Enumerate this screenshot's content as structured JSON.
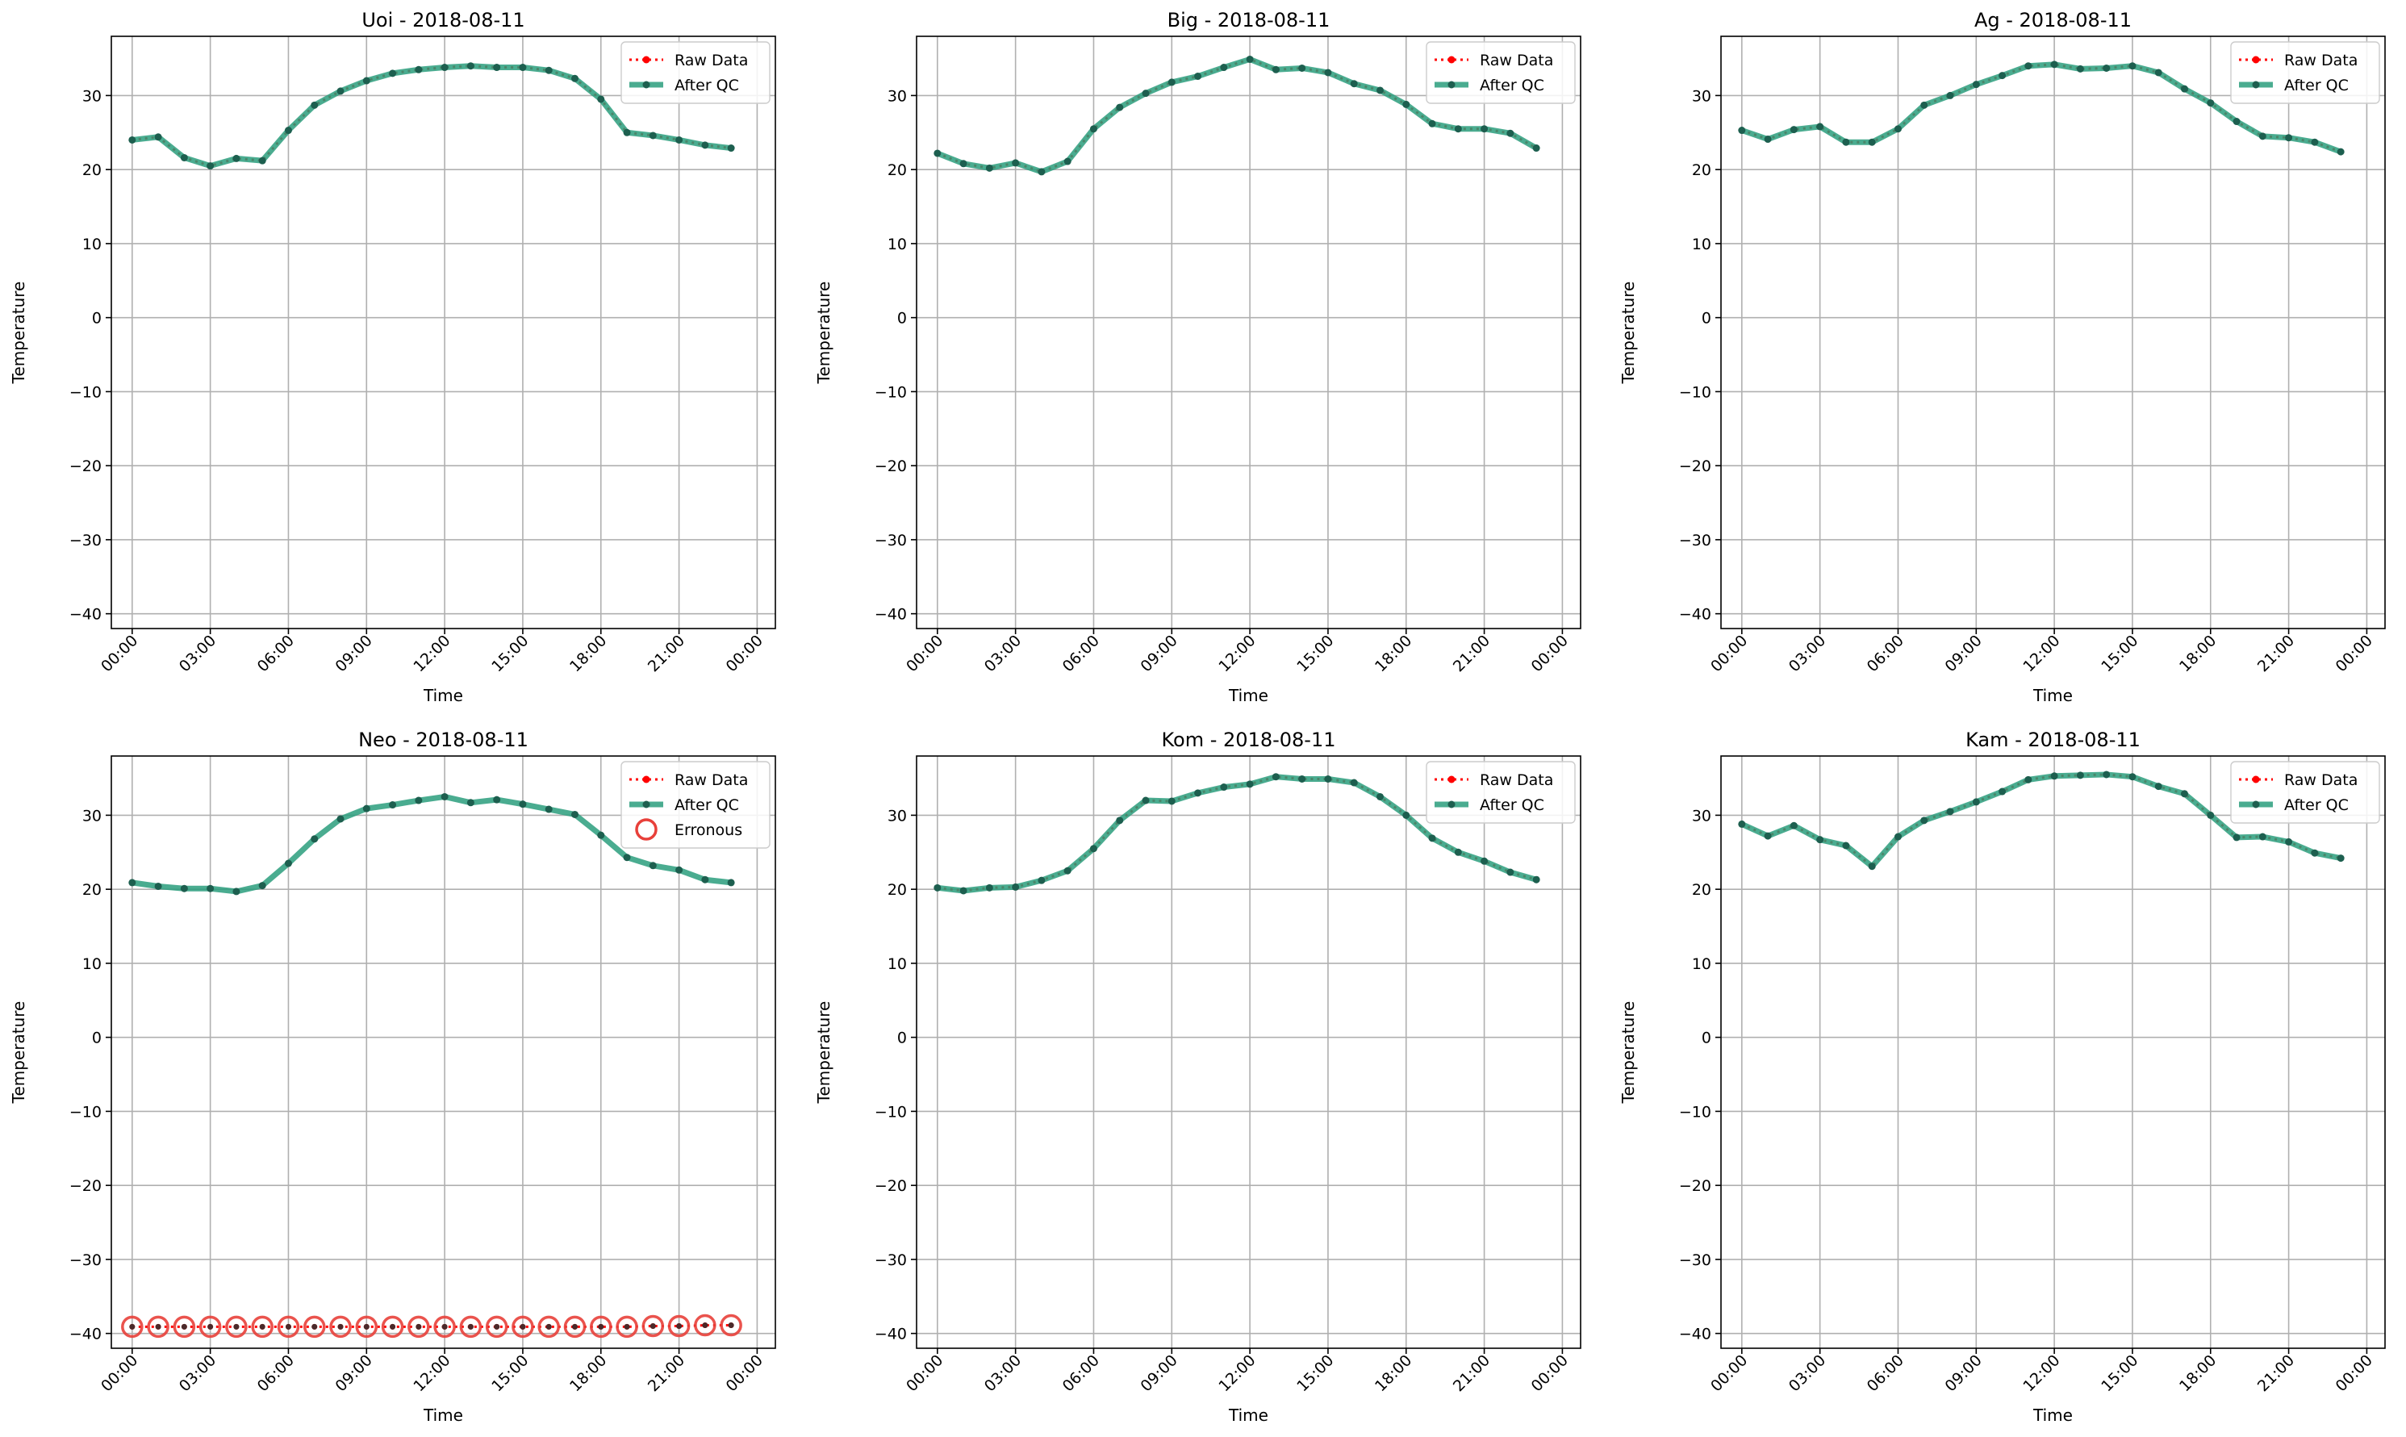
{
  "chart_data": [
    {
      "type": "line",
      "title": "Uoi - 2018-08-11",
      "xlabel": "Time",
      "ylabel": "Temperature",
      "ylim": [
        -42,
        38
      ],
      "yticks": [
        -40,
        -30,
        -20,
        -10,
        0,
        10,
        20,
        30
      ],
      "xticks": [
        "00:00",
        "03:00",
        "06:00",
        "09:00",
        "12:00",
        "15:00",
        "18:00",
        "21:00",
        "00:00"
      ],
      "grid": true,
      "legend_position": "top-right",
      "legend": [
        "Raw Data",
        "After QC"
      ],
      "x_hours": [
        0,
        1,
        2,
        3,
        4,
        5,
        6,
        7,
        8,
        9,
        10,
        11,
        12,
        13,
        14,
        15,
        16,
        17,
        18,
        19,
        20,
        21,
        22,
        23
      ],
      "series": [
        {
          "name": "Raw Data",
          "values": [
            24.0,
            24.4,
            21.6,
            20.5,
            21.5,
            21.2,
            25.3,
            28.7,
            30.6,
            32.0,
            33.0,
            33.5,
            33.8,
            34.0,
            33.8,
            33.8,
            33.4,
            32.3,
            29.5,
            25.0,
            24.6,
            24.0,
            23.3,
            22.9
          ]
        },
        {
          "name": "After QC",
          "values": [
            24.0,
            24.4,
            21.6,
            20.5,
            21.5,
            21.2,
            25.3,
            28.7,
            30.6,
            32.0,
            33.0,
            33.5,
            33.8,
            34.0,
            33.8,
            33.8,
            33.4,
            32.3,
            29.5,
            25.0,
            24.6,
            24.0,
            23.3,
            22.9
          ]
        }
      ]
    },
    {
      "type": "line",
      "title": "Big - 2018-08-11",
      "xlabel": "Time",
      "ylabel": "Temperature",
      "ylim": [
        -42,
        38
      ],
      "yticks": [
        -40,
        -30,
        -20,
        -10,
        0,
        10,
        20,
        30
      ],
      "xticks": [
        "00:00",
        "03:00",
        "06:00",
        "09:00",
        "12:00",
        "15:00",
        "18:00",
        "21:00",
        "00:00"
      ],
      "grid": true,
      "legend_position": "top-right",
      "legend": [
        "Raw Data",
        "After QC"
      ],
      "x_hours": [
        0,
        1,
        2,
        3,
        4,
        5,
        6,
        7,
        8,
        9,
        10,
        11,
        12,
        13,
        14,
        15,
        16,
        17,
        18,
        19,
        20,
        21,
        22,
        23
      ],
      "series": [
        {
          "name": "Raw Data",
          "values": [
            22.2,
            20.8,
            20.2,
            20.9,
            19.7,
            21.1,
            25.5,
            28.4,
            30.3,
            31.8,
            32.6,
            33.8,
            34.9,
            33.5,
            33.7,
            33.1,
            31.6,
            30.7,
            28.8,
            26.2,
            25.5,
            25.5,
            24.9,
            22.9
          ]
        },
        {
          "name": "After QC",
          "values": [
            22.2,
            20.8,
            20.2,
            20.9,
            19.7,
            21.1,
            25.5,
            28.4,
            30.3,
            31.8,
            32.6,
            33.8,
            34.9,
            33.5,
            33.7,
            33.1,
            31.6,
            30.7,
            28.8,
            26.2,
            25.5,
            25.5,
            24.9,
            22.9
          ]
        }
      ]
    },
    {
      "type": "line",
      "title": "Ag - 2018-08-11",
      "xlabel": "Time",
      "ylabel": "Temperature",
      "ylim": [
        -42,
        38
      ],
      "yticks": [
        -40,
        -30,
        -20,
        -10,
        0,
        10,
        20,
        30
      ],
      "xticks": [
        "00:00",
        "03:00",
        "06:00",
        "09:00",
        "12:00",
        "15:00",
        "18:00",
        "21:00",
        "00:00"
      ],
      "grid": true,
      "legend_position": "top-right",
      "legend": [
        "Raw Data",
        "After QC"
      ],
      "x_hours": [
        0,
        1,
        2,
        3,
        4,
        5,
        6,
        7,
        8,
        9,
        10,
        11,
        12,
        13,
        14,
        15,
        16,
        17,
        18,
        19,
        20,
        21,
        22,
        23
      ],
      "series": [
        {
          "name": "Raw Data",
          "values": [
            25.3,
            24.1,
            25.4,
            25.8,
            23.7,
            23.7,
            25.5,
            28.7,
            30.0,
            31.5,
            32.7,
            34.0,
            34.2,
            33.6,
            33.7,
            34.0,
            33.1,
            30.9,
            29.0,
            26.5,
            24.5,
            24.3,
            23.7,
            22.4
          ]
        },
        {
          "name": "After QC",
          "values": [
            25.3,
            24.1,
            25.4,
            25.8,
            23.7,
            23.7,
            25.5,
            28.7,
            30.0,
            31.5,
            32.7,
            34.0,
            34.2,
            33.6,
            33.7,
            34.0,
            33.1,
            30.9,
            29.0,
            26.5,
            24.5,
            24.3,
            23.7,
            22.4
          ]
        }
      ]
    },
    {
      "type": "line",
      "title": "Neo - 2018-08-11",
      "xlabel": "Time",
      "ylabel": "Temperature",
      "ylim": [
        -42,
        38
      ],
      "yticks": [
        -40,
        -30,
        -20,
        -10,
        0,
        10,
        20,
        30
      ],
      "xticks": [
        "00:00",
        "03:00",
        "06:00",
        "09:00",
        "12:00",
        "15:00",
        "18:00",
        "21:00",
        "00:00"
      ],
      "grid": true,
      "legend_position": "top-right",
      "legend": [
        "Raw Data",
        "After QC",
        "Erronous"
      ],
      "x_hours": [
        0,
        1,
        2,
        3,
        4,
        5,
        6,
        7,
        8,
        9,
        10,
        11,
        12,
        13,
        14,
        15,
        16,
        17,
        18,
        19,
        20,
        21,
        22,
        23
      ],
      "series": [
        {
          "name": "Raw Data",
          "values": [
            -39.1,
            -39.1,
            -39.1,
            -39.1,
            -39.1,
            -39.1,
            -39.1,
            -39.1,
            -39.1,
            -39.1,
            -39.1,
            -39.1,
            -39.1,
            -39.1,
            -39.1,
            -39.1,
            -39.1,
            -39.1,
            -39.1,
            -39.1,
            -39.0,
            -39.0,
            -38.9,
            -38.9
          ]
        },
        {
          "name": "After QC",
          "values": [
            20.9,
            20.4,
            20.1,
            20.1,
            19.7,
            20.5,
            23.5,
            26.8,
            29.5,
            30.9,
            31.4,
            32.0,
            32.5,
            31.7,
            32.1,
            31.5,
            30.8,
            30.1,
            27.3,
            24.3,
            23.2,
            22.6,
            21.3,
            20.9
          ]
        },
        {
          "name": "Erronous",
          "values": [
            -39.1,
            -39.1,
            -39.1,
            -39.1,
            -39.1,
            -39.1,
            -39.1,
            -39.1,
            -39.1,
            -39.1,
            -39.1,
            -39.1,
            -39.1,
            -39.1,
            -39.1,
            -39.1,
            -39.1,
            -39.1,
            -39.1,
            -39.1,
            -39.0,
            -39.0,
            -38.9,
            -38.9
          ]
        }
      ]
    },
    {
      "type": "line",
      "title": "Kom - 2018-08-11",
      "xlabel": "Time",
      "ylabel": "Temperature",
      "ylim": [
        -42,
        38
      ],
      "yticks": [
        -40,
        -30,
        -20,
        -10,
        0,
        10,
        20,
        30
      ],
      "xticks": [
        "00:00",
        "03:00",
        "06:00",
        "09:00",
        "12:00",
        "15:00",
        "18:00",
        "21:00",
        "00:00"
      ],
      "grid": true,
      "legend_position": "top-right",
      "legend": [
        "Raw Data",
        "After QC"
      ],
      "x_hours": [
        0,
        1,
        2,
        3,
        4,
        5,
        6,
        7,
        8,
        9,
        10,
        11,
        12,
        13,
        14,
        15,
        16,
        17,
        18,
        19,
        20,
        21,
        22,
        23
      ],
      "series": [
        {
          "name": "Raw Data",
          "values": [
            20.2,
            19.8,
            20.2,
            20.3,
            21.2,
            22.5,
            25.5,
            29.3,
            32.0,
            31.9,
            33.0,
            33.8,
            34.2,
            35.2,
            34.9,
            34.9,
            34.4,
            32.5,
            30.0,
            26.9,
            25.0,
            23.8,
            22.3,
            21.3
          ]
        },
        {
          "name": "After QC",
          "values": [
            20.2,
            19.8,
            20.2,
            20.3,
            21.2,
            22.5,
            25.5,
            29.3,
            32.0,
            31.9,
            33.0,
            33.8,
            34.2,
            35.2,
            34.9,
            34.9,
            34.4,
            32.5,
            30.0,
            26.9,
            25.0,
            23.8,
            22.3,
            21.3
          ]
        }
      ]
    },
    {
      "type": "line",
      "title": "Kam - 2018-08-11",
      "xlabel": "Time",
      "ylabel": "Temperature",
      "ylim": [
        -42,
        38
      ],
      "yticks": [
        -40,
        -30,
        -20,
        -10,
        0,
        10,
        20,
        30
      ],
      "xticks": [
        "00:00",
        "03:00",
        "06:00",
        "09:00",
        "12:00",
        "15:00",
        "18:00",
        "21:00",
        "00:00"
      ],
      "grid": true,
      "legend_position": "top-right",
      "legend": [
        "Raw Data",
        "After QC"
      ],
      "x_hours": [
        0,
        1,
        2,
        3,
        4,
        5,
        6,
        7,
        8,
        9,
        10,
        11,
        12,
        13,
        14,
        15,
        16,
        17,
        18,
        19,
        20,
        21,
        22,
        23
      ],
      "series": [
        {
          "name": "Raw Data",
          "values": [
            28.8,
            27.2,
            28.6,
            26.7,
            25.9,
            23.1,
            27.1,
            29.3,
            30.5,
            31.8,
            33.2,
            34.8,
            35.3,
            35.4,
            35.5,
            35.2,
            33.9,
            32.9,
            30.0,
            27.0,
            27.1,
            26.4,
            24.9,
            24.2
          ]
        },
        {
          "name": "After QC",
          "values": [
            28.8,
            27.2,
            28.6,
            26.7,
            25.9,
            23.1,
            27.1,
            29.3,
            30.5,
            31.8,
            33.2,
            34.8,
            35.3,
            35.4,
            35.5,
            35.2,
            33.9,
            32.9,
            30.0,
            27.0,
            27.1,
            26.4,
            24.9,
            24.2
          ]
        }
      ]
    }
  ],
  "colors": {
    "raw": "#ff0000",
    "qc": "#2a9d7c",
    "qc_marker": "#1d5f4f",
    "erroneous": "#e8403a",
    "grid": "#b0b0b0",
    "axis": "#000000"
  }
}
